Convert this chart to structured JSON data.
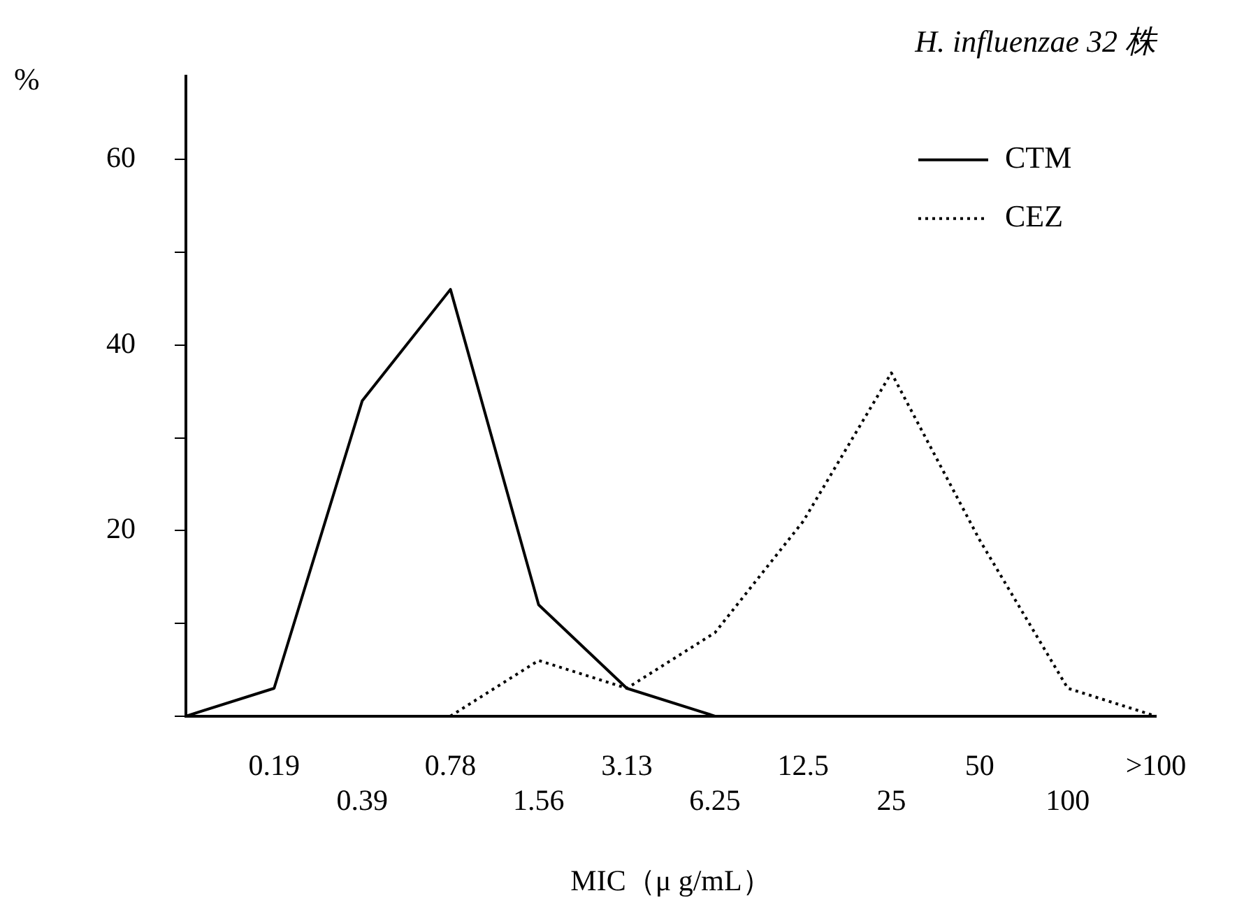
{
  "chart_data": {
    "type": "line",
    "title": "H. influenzae 32 株",
    "ylabel": "%",
    "xlabel": "MIC（μ g/mL）",
    "categories": [
      null,
      "0.19",
      "0.39",
      "0.78",
      "1.56",
      "3.13",
      "6.25",
      "12.5",
      "25",
      "50",
      "100",
      ">100"
    ],
    "series": [
      {
        "name": "CTM",
        "color": "#000000",
        "line_style": "solid",
        "values": [
          0,
          3,
          34,
          46,
          12,
          3,
          0,
          null,
          null,
          null,
          null,
          null
        ]
      },
      {
        "name": "CEZ",
        "color": "#000000",
        "line_style": "dotted",
        "values": [
          null,
          null,
          null,
          0,
          6,
          3,
          9,
          21,
          37,
          19,
          3,
          0
        ]
      }
    ],
    "ylim": [
      0,
      69
    ],
    "yticks": [
      {
        "value": 0,
        "label": null
      },
      {
        "value": 10,
        "label": null
      },
      20,
      {
        "value": 30,
        "label": null
      },
      40,
      {
        "value": 50,
        "label": null
      },
      60
    ],
    "grid": false,
    "legend": "top right",
    "marker": "none"
  }
}
